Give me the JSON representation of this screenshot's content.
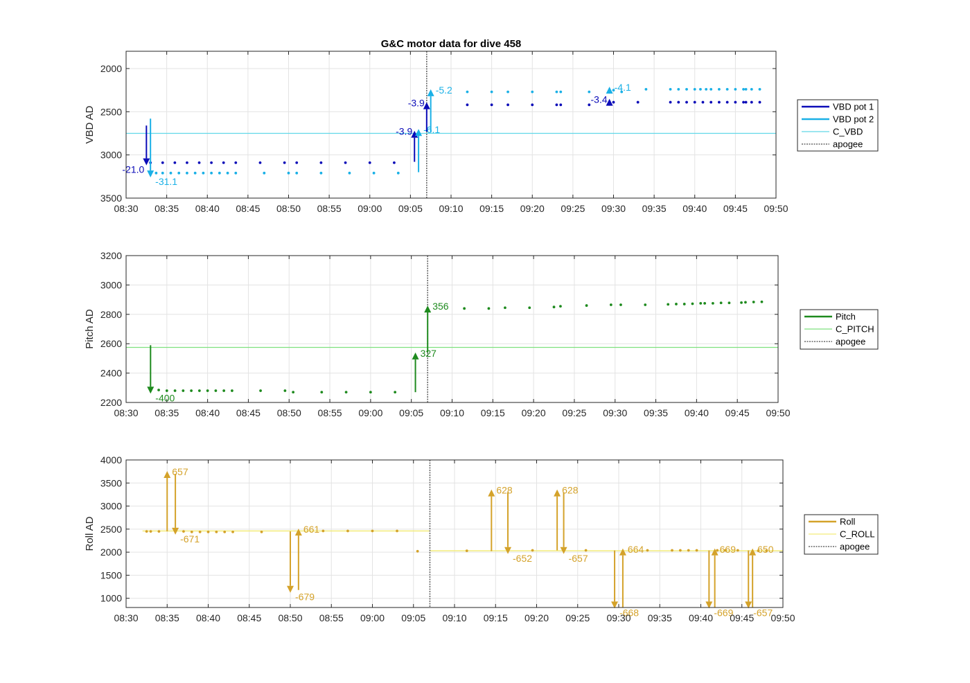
{
  "title": "G&C motor data for dive 458",
  "x_ticks": [
    "08:30",
    "08:35",
    "08:40",
    "08:45",
    "08:50",
    "08:55",
    "09:00",
    "09:05",
    "09:10",
    "09:15",
    "09:20",
    "09:25",
    "09:30",
    "09:35",
    "09:40",
    "09:45",
    "09:50"
  ],
  "colors": {
    "vbd1": "#0b0bb8",
    "vbd2": "#1ab0e6",
    "c_vbd": "#5fd8e8",
    "pitch": "#1e8a1e",
    "c_pitch": "#7ee07e",
    "roll": "#d4a22a",
    "c_roll": "#f3ec79",
    "apogee": "#666666",
    "grid": "#e3e3e3",
    "axis": "#262626"
  },
  "chart_data": [
    {
      "type": "scatter",
      "ylabel": "VBD AD",
      "ylim": [
        3500,
        1800
      ],
      "y_reversed": true,
      "y_ticks": [
        2000,
        2500,
        3000,
        3500
      ],
      "xlim": [
        "08:30",
        "09:50"
      ],
      "grid": true,
      "legend": {
        "placement": "right",
        "entries": [
          "VBD pot 1",
          "VBD pot 2",
          "C_VBD",
          "apogee"
        ]
      },
      "apogee": "09:07",
      "reference": {
        "name": "C_VBD",
        "value": 2750
      },
      "series": [
        {
          "name": "VBD pot 1",
          "x": [
            "08:33",
            "08:34.5",
            "08:36",
            "08:37.5",
            "08:39",
            "08:40.5",
            "08:42",
            "08:43.5",
            "08:46.5",
            "08:49.5",
            "08:51",
            "08:54",
            "08:57",
            "09:00",
            "09:03",
            "09:12",
            "09:15",
            "09:17",
            "09:20",
            "09:23",
            "09:23.5",
            "09:27",
            "09:30",
            "09:33",
            "09:37",
            "09:38",
            "09:39",
            "09:40",
            "09:41",
            "09:42",
            "09:43",
            "09:44",
            "09:45",
            "09:46",
            "09:46.3",
            "09:47",
            "09:48"
          ],
          "y": [
            3090,
            3090,
            3090,
            3090,
            3090,
            3090,
            3090,
            3090,
            3090,
            3090,
            3090,
            3090,
            3090,
            3090,
            3090,
            2420,
            2420,
            2420,
            2420,
            2420,
            2420,
            2420,
            2390,
            2390,
            2390,
            2390,
            2390,
            2390,
            2390,
            2390,
            2390,
            2390,
            2390,
            2390,
            2390,
            2390,
            2390
          ]
        },
        {
          "name": "VBD pot 2",
          "x": [
            "08:33.7",
            "08:34.5",
            "08:35.5",
            "08:36.5",
            "08:37.5",
            "08:38.5",
            "08:39.5",
            "08:40.5",
            "08:41.5",
            "08:42.5",
            "08:43.5",
            "08:47",
            "08:50",
            "08:51",
            "08:54",
            "08:57.5",
            "09:00.5",
            "09:03.5",
            "09:12",
            "09:15",
            "09:17",
            "09:20",
            "09:23",
            "09:23.5",
            "09:27",
            "09:30",
            "09:31",
            "09:34",
            "09:37",
            "09:38",
            "09:39",
            "09:40",
            "09:40.7",
            "09:41.4",
            "09:42",
            "09:43",
            "09:44",
            "09:45",
            "09:46",
            "09:46.3",
            "09:47",
            "09:48"
          ],
          "y": [
            3210,
            3210,
            3210,
            3210,
            3210,
            3210,
            3210,
            3210,
            3210,
            3210,
            3210,
            3210,
            3210,
            3210,
            3210,
            3210,
            3210,
            3210,
            2270,
            2270,
            2270,
            2270,
            2270,
            2270,
            2270,
            2250,
            2270,
            2240,
            2240,
            2240,
            2240,
            2240,
            2240,
            2240,
            2240,
            2240,
            2240,
            2240,
            2240,
            2240,
            2240,
            2240
          ]
        }
      ],
      "annotations": [
        {
          "series": "VBD pot 1",
          "x": "08:32.5",
          "from": 2660,
          "to": 3120,
          "label": "-21.0",
          "side": "left"
        },
        {
          "series": "VBD pot 2",
          "x": "08:33",
          "from": 2580,
          "to": 3260,
          "label": "-31.1",
          "side": "right"
        },
        {
          "series": "VBD pot 1",
          "x": "09:05.5",
          "from": 3080,
          "to": 2720,
          "label": "-3.9",
          "side": "left"
        },
        {
          "series": "VBD pot 2",
          "x": "09:06",
          "from": 3200,
          "to": 2700,
          "label": "-6.1",
          "side": "right"
        },
        {
          "series": "VBD pot 1",
          "x": "09:07",
          "from": 2730,
          "to": 2390,
          "label": "-3.9",
          "side": "left"
        },
        {
          "series": "VBD pot 2",
          "x": "09:07.5",
          "from": 2740,
          "to": 2240,
          "label": "-5.2",
          "side": "right"
        },
        {
          "series": "VBD pot 1",
          "x": "09:29.5",
          "from": 2390,
          "to": 2350,
          "label": "-3.4",
          "side": "left"
        },
        {
          "series": "VBD pot 2",
          "x": "09:29.5",
          "from": 2250,
          "to": 2210,
          "label": "-4.1",
          "side": "right"
        }
      ]
    },
    {
      "type": "scatter",
      "ylabel": "Pitch AD",
      "ylim": [
        2200,
        3200
      ],
      "y_ticks": [
        2200,
        2400,
        2600,
        2800,
        3000,
        3200
      ],
      "xlim": [
        "08:30",
        "09:50"
      ],
      "grid": true,
      "legend": {
        "placement": "right",
        "entries": [
          "Pitch",
          "C_PITCH",
          "apogee"
        ]
      },
      "apogee": "09:07",
      "reference": {
        "name": "C_PITCH",
        "value": 2575
      },
      "series": [
        {
          "name": "Pitch",
          "x": [
            "08:34",
            "08:35",
            "08:36",
            "08:37",
            "08:38",
            "08:39",
            "08:40",
            "08:41",
            "08:42",
            "08:43",
            "08:46.5",
            "08:49.5",
            "08:50.5",
            "08:54",
            "08:57",
            "09:00",
            "09:03",
            "09:11.5",
            "09:14.5",
            "09:16.5",
            "09:19.5",
            "09:22.5",
            "09:23.3",
            "09:26.5",
            "09:29.5",
            "09:30.7",
            "09:33.7",
            "09:36.5",
            "09:37.5",
            "09:38.5",
            "09:39.5",
            "09:40.5",
            "09:41",
            "09:42",
            "09:43",
            "09:44",
            "09:45.5",
            "09:46",
            "09:47",
            "09:48"
          ],
          "y": [
            2285,
            2280,
            2280,
            2280,
            2280,
            2280,
            2280,
            2280,
            2280,
            2280,
            2280,
            2280,
            2270,
            2270,
            2270,
            2270,
            2270,
            2840,
            2840,
            2845,
            2845,
            2850,
            2855,
            2860,
            2865,
            2865,
            2865,
            2868,
            2870,
            2870,
            2872,
            2875,
            2875,
            2875,
            2878,
            2878,
            2880,
            2882,
            2884,
            2885
          ]
        }
      ],
      "annotations": [
        {
          "series": "Pitch",
          "x": "08:33",
          "from": 2590,
          "to": 2260,
          "label": "-400",
          "side": "right"
        },
        {
          "series": "Pitch",
          "x": "09:05.5",
          "from": 2270,
          "to": 2540,
          "label": "327",
          "side": "right"
        },
        {
          "series": "Pitch",
          "x": "09:07",
          "from": 2540,
          "to": 2860,
          "label": "356",
          "side": "right"
        }
      ]
    },
    {
      "type": "scatter",
      "ylabel": "Roll AD",
      "ylim": [
        800,
        4000
      ],
      "y_ticks": [
        1000,
        1500,
        2000,
        2500,
        3000,
        3500,
        4000
      ],
      "xlim": [
        "08:30",
        "09:50"
      ],
      "grid": true,
      "legend": {
        "placement": "right",
        "entries": [
          "Roll",
          "C_ROLL",
          "apogee"
        ]
      },
      "apogee": "09:07",
      "reference_segments": [
        {
          "name": "C_ROLL",
          "from": "08:32",
          "to": "09:07",
          "value": 2460
        },
        {
          "name": "C_ROLL",
          "from": "09:07",
          "to": "09:50",
          "value": 2030
        }
      ],
      "series": [
        {
          "name": "Roll",
          "x": [
            "08:32.5",
            "08:33",
            "08:34",
            "08:37",
            "08:38",
            "08:39",
            "08:40",
            "08:41",
            "08:42",
            "08:43",
            "08:46.5",
            "08:54",
            "08:57",
            "09:00",
            "09:03",
            "09:05.5",
            "09:11.5",
            "09:19.5",
            "09:26",
            "09:33.5",
            "09:36.5",
            "09:37.5",
            "09:38.5",
            "09:39.5",
            "09:42",
            "09:43",
            "09:44.5",
            "09:47",
            "09:48"
          ],
          "y": [
            2450,
            2450,
            2450,
            2450,
            2440,
            2440,
            2440,
            2440,
            2440,
            2440,
            2440,
            2460,
            2460,
            2460,
            2460,
            2020,
            2030,
            2040,
            2040,
            2040,
            2040,
            2040,
            2040,
            2040,
            2040,
            2040,
            2040,
            2030,
            2030
          ]
        }
      ],
      "annotations": [
        {
          "series": "Roll",
          "x": "08:35",
          "from": 2450,
          "to": 3760,
          "label": "657",
          "side": "right"
        },
        {
          "series": "Roll",
          "x": "08:36",
          "from": 3700,
          "to": 2380,
          "label": "-671",
          "side": "right"
        },
        {
          "series": "Roll",
          "x": "08:50",
          "from": 2450,
          "to": 1120,
          "label": "-679",
          "side": "right"
        },
        {
          "series": "Roll",
          "x": "08:51",
          "from": 1180,
          "to": 2510,
          "label": "661",
          "side": "right"
        },
        {
          "series": "Roll",
          "x": "09:14.5",
          "from": 2020,
          "to": 3360,
          "label": "628",
          "side": "right"
        },
        {
          "series": "Roll",
          "x": "09:16.5",
          "from": 3300,
          "to": 1960,
          "label": "-652",
          "side": "right"
        },
        {
          "series": "Roll",
          "x": "09:22.5",
          "from": 2040,
          "to": 3360,
          "label": "628",
          "side": "right"
        },
        {
          "series": "Roll",
          "x": "09:23.3",
          "from": 3300,
          "to": 1960,
          "label": "-657",
          "side": "right"
        },
        {
          "series": "Roll",
          "x": "09:29.5",
          "from": 2040,
          "to": 780,
          "label": "-668",
          "side": "right"
        },
        {
          "series": "Roll",
          "x": "09:30.5",
          "from": 800,
          "to": 2080,
          "label": "664",
          "side": "right"
        },
        {
          "series": "Roll",
          "x": "09:41",
          "from": 2040,
          "to": 780,
          "label": "-669",
          "side": "right"
        },
        {
          "series": "Roll",
          "x": "09:41.7",
          "from": 800,
          "to": 2080,
          "label": "669",
          "side": "right"
        },
        {
          "series": "Roll",
          "x": "09:45.8",
          "from": 2040,
          "to": 780,
          "label": "-657",
          "side": "right"
        },
        {
          "series": "Roll",
          "x": "09:46.3",
          "from": 800,
          "to": 2080,
          "label": "650",
          "side": "right"
        }
      ]
    }
  ]
}
